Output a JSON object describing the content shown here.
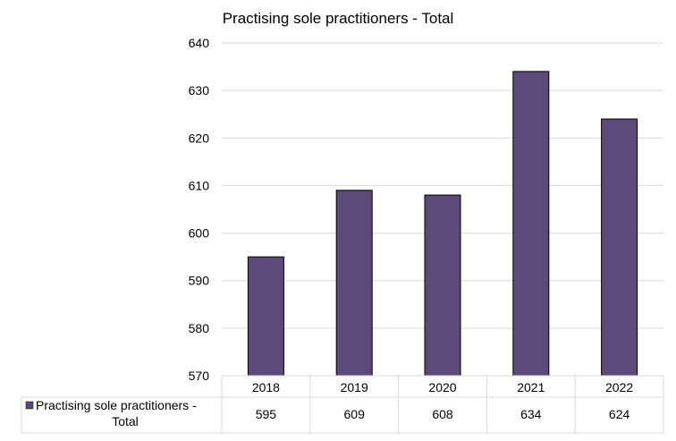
{
  "chart_data": {
    "type": "bar",
    "title": "Practising sole practitioners - Total",
    "categories": [
      "2018",
      "2019",
      "2020",
      "2021",
      "2022"
    ],
    "series": [
      {
        "name": "Practising sole practitioners - Total",
        "values": [
          595,
          609,
          608,
          634,
          624
        ]
      }
    ],
    "ylim": [
      570,
      640
    ],
    "yticks": [
      570,
      580,
      590,
      600,
      610,
      620,
      630,
      640
    ],
    "grid": true,
    "legend": "data-table-left",
    "data_table": true,
    "legend_label_lines": [
      "Practising sole practitioners -",
      "Total"
    ],
    "bar_color": "#5b4a7a",
    "bar_stroke": "#000000",
    "grid_color": "#d9d9d9"
  }
}
